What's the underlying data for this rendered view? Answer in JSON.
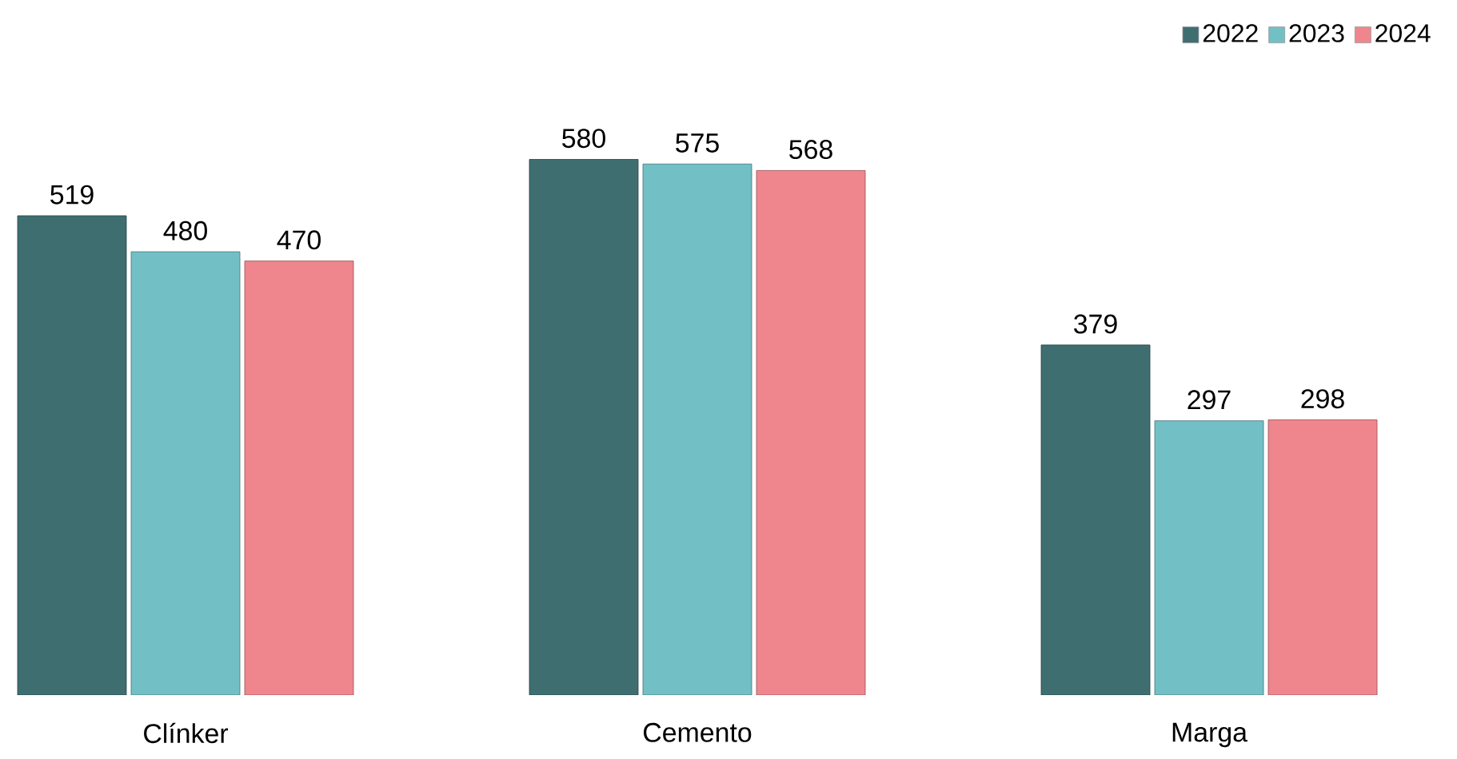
{
  "chart_data": {
    "type": "bar",
    "categories": [
      "Clínker",
      "Cemento",
      "Marga"
    ],
    "series": [
      {
        "name": "2022",
        "color": "#3f6e71",
        "values": [
          519,
          580,
          379
        ]
      },
      {
        "name": "2023",
        "color": "#72c0c6",
        "values": [
          480,
          575,
          297
        ]
      },
      {
        "name": "2024",
        "color": "#f0868d",
        "values": [
          470,
          568,
          298
        ]
      }
    ],
    "data_labels": true,
    "legend": "top right"
  }
}
